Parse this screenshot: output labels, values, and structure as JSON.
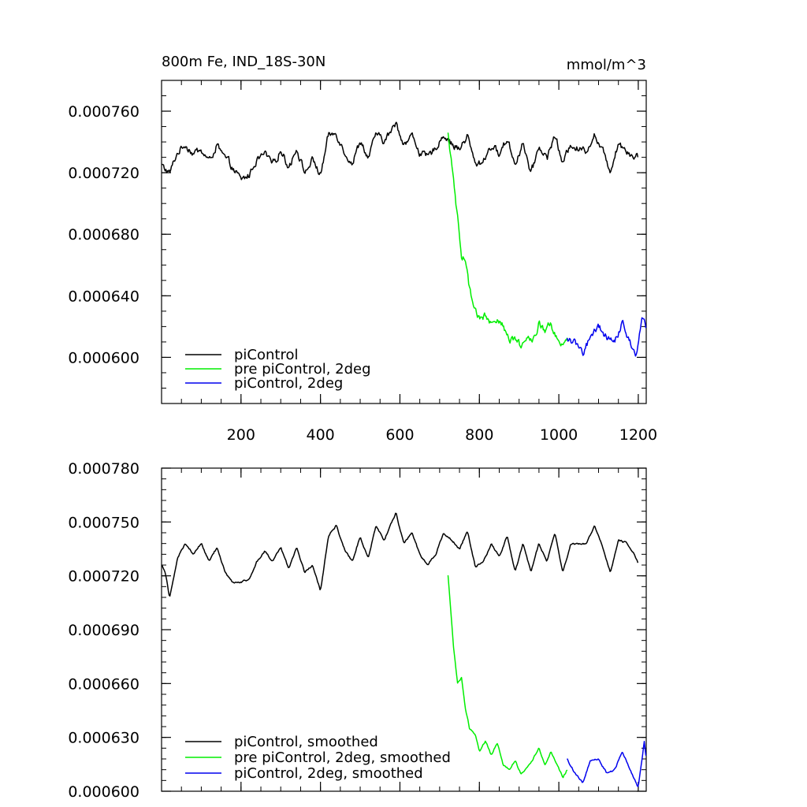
{
  "chart_data": [
    {
      "type": "line",
      "title": "800m Fe, IND_18S-30N",
      "units": "mmol/m^3",
      "xlim": [
        0,
        1220
      ],
      "ylim": [
        0.00057,
        0.00078
      ],
      "x_ticks": [
        200,
        400,
        600,
        800,
        1000,
        1200
      ],
      "x_tick_labels": [
        "200",
        "400",
        "600",
        "800",
        "1000",
        "1200"
      ],
      "y_ticks": [
        0.0006,
        0.00064,
        0.00068,
        0.00072,
        0.00076
      ],
      "y_tick_labels": [
        "0.000600",
        "0.000640",
        "0.000680",
        "0.000720",
        "0.000760"
      ],
      "y_minor_step": 1e-05,
      "x_minor_step": 50,
      "noise": 3.5e-06,
      "legend_position": "bottom-left",
      "series": [
        {
          "name": "piControl",
          "color": "#000000",
          "points": [
            [
              1,
              0.000725
            ],
            [
              20,
              0.00072
            ],
            [
              40,
              0.000733
            ],
            [
              60,
              0.000738
            ],
            [
              80,
              0.000732
            ],
            [
              100,
              0.000735
            ],
            [
              120,
              0.000728
            ],
            [
              140,
              0.000737
            ],
            [
              160,
              0.00073
            ],
            [
              180,
              0.000722
            ],
            [
              200,
              0.000715
            ],
            [
              220,
              0.000718
            ],
            [
              240,
              0.000729
            ],
            [
              260,
              0.000733
            ],
            [
              280,
              0.000727
            ],
            [
              300,
              0.000735
            ],
            [
              320,
              0.000723
            ],
            [
              340,
              0.000737
            ],
            [
              360,
              0.00072
            ],
            [
              380,
              0.000728
            ],
            [
              400,
              0.000718
            ],
            [
              420,
              0.000743
            ],
            [
              440,
              0.000745
            ],
            [
              460,
              0.000733
            ],
            [
              480,
              0.000726
            ],
            [
              500,
              0.00074
            ],
            [
              520,
              0.000728
            ],
            [
              540,
              0.000746
            ],
            [
              560,
              0.00074
            ],
            [
              590,
              0.000752
            ],
            [
              610,
              0.000738
            ],
            [
              630,
              0.000745
            ],
            [
              650,
              0.000733
            ],
            [
              670,
              0.00073
            ],
            [
              690,
              0.000735
            ],
            [
              710,
              0.000745
            ],
            [
              730,
              0.000738
            ],
            [
              750,
              0.000735
            ],
            [
              770,
              0.000745
            ],
            [
              790,
              0.000725
            ],
            [
              810,
              0.000728
            ],
            [
              830,
              0.000738
            ],
            [
              850,
              0.000732
            ],
            [
              870,
              0.000742
            ],
            [
              890,
              0.000725
            ],
            [
              910,
              0.00074
            ],
            [
              930,
              0.00072
            ],
            [
              950,
              0.000738
            ],
            [
              970,
              0.00073
            ],
            [
              990,
              0.000745
            ],
            [
              1010,
              0.000725
            ],
            [
              1030,
              0.00074
            ],
            [
              1050,
              0.000735
            ],
            [
              1070,
              0.000735
            ],
            [
              1090,
              0.000745
            ],
            [
              1110,
              0.000735
            ],
            [
              1130,
              0.000722
            ],
            [
              1150,
              0.00074
            ],
            [
              1170,
              0.000735
            ],
            [
              1190,
              0.00073
            ],
            [
              1200,
              0.000731
            ]
          ]
        },
        {
          "name": "pre piControl, 2deg",
          "color": "#00ee00",
          "points": [
            [
              721,
              0.000745
            ],
            [
              735,
              0.000715
            ],
            [
              745,
              0.00069
            ],
            [
              755,
              0.000665
            ],
            [
              765,
              0.000662
            ],
            [
              775,
              0.000645
            ],
            [
              785,
              0.000632
            ],
            [
              800,
              0.000625
            ],
            [
              815,
              0.000628
            ],
            [
              830,
              0.000622
            ],
            [
              845,
              0.000627
            ],
            [
              860,
              0.00062
            ],
            [
              875,
              0.00061
            ],
            [
              890,
              0.000612
            ],
            [
              905,
              0.000608
            ],
            [
              920,
              0.000615
            ],
            [
              935,
              0.000612
            ],
            [
              950,
              0.000622
            ],
            [
              965,
              0.000618
            ],
            [
              980,
              0.000622
            ],
            [
              995,
              0.000612
            ],
            [
              1010,
              0.000608
            ],
            [
              1021,
              0.000612
            ]
          ]
        },
        {
          "name": "piControl, 2deg",
          "color": "#0000ee",
          "points": [
            [
              1021,
              0.000612
            ],
            [
              1040,
              0.00061
            ],
            [
              1060,
              0.000603
            ],
            [
              1080,
              0.000615
            ],
            [
              1100,
              0.000618
            ],
            [
              1120,
              0.000612
            ],
            [
              1140,
              0.00061
            ],
            [
              1160,
              0.000622
            ],
            [
              1180,
              0.00061
            ],
            [
              1195,
              0.000602
            ],
            [
              1210,
              0.000628
            ],
            [
              1220,
              0.000618
            ]
          ]
        }
      ]
    },
    {
      "type": "line",
      "xlim": [
        0,
        1220
      ],
      "ylim": [
        0.0006,
        0.00078
      ],
      "x_ticks": [
        200,
        400,
        600,
        800,
        1000,
        1200
      ],
      "x_tick_labels": [],
      "y_ticks": [
        0.0006,
        0.00063,
        0.00066,
        0.00069,
        0.00072,
        0.00075,
        0.00078
      ],
      "y_tick_labels": [
        "0.000600",
        "0.000630",
        "0.000660",
        "0.000690",
        "0.000720",
        "0.000750",
        "0.000780"
      ],
      "y_minor_step": 6e-06,
      "x_minor_step": 50,
      "noise": 8e-07,
      "legend_position": "bottom-left",
      "series": [
        {
          "name": "piControl, smoothed",
          "color": "#000000",
          "points": [
            [
              1,
              0.000726
            ],
            [
              10,
              0.000722
            ],
            [
              20,
              0.000708
            ],
            [
              30,
              0.000718
            ],
            [
              40,
              0.00073
            ],
            [
              60,
              0.000738
            ],
            [
              80,
              0.000732
            ],
            [
              100,
              0.000738
            ],
            [
              120,
              0.000728
            ],
            [
              140,
              0.000736
            ],
            [
              160,
              0.000722
            ],
            [
              180,
              0.000716
            ],
            [
              200,
              0.000716
            ],
            [
              220,
              0.000718
            ],
            [
              240,
              0.000728
            ],
            [
              260,
              0.000734
            ],
            [
              280,
              0.000728
            ],
            [
              300,
              0.000736
            ],
            [
              320,
              0.000724
            ],
            [
              340,
              0.000736
            ],
            [
              360,
              0.000722
            ],
            [
              380,
              0.000726
            ],
            [
              400,
              0.000712
            ],
            [
              420,
              0.000742
            ],
            [
              440,
              0.000748
            ],
            [
              460,
              0.000735
            ],
            [
              480,
              0.000728
            ],
            [
              500,
              0.000742
            ],
            [
              520,
              0.00073
            ],
            [
              540,
              0.000748
            ],
            [
              560,
              0.00074
            ],
            [
              590,
              0.000755
            ],
            [
              610,
              0.000738
            ],
            [
              630,
              0.000744
            ],
            [
              650,
              0.000732
            ],
            [
              670,
              0.000726
            ],
            [
              690,
              0.000732
            ],
            [
              710,
              0.000744
            ],
            [
              730,
              0.00074
            ],
            [
              750,
              0.000735
            ],
            [
              770,
              0.000745
            ],
            [
              790,
              0.000725
            ],
            [
              810,
              0.000728
            ],
            [
              830,
              0.000738
            ],
            [
              850,
              0.00073
            ],
            [
              870,
              0.000742
            ],
            [
              890,
              0.000722
            ],
            [
              910,
              0.000738
            ],
            [
              930,
              0.000722
            ],
            [
              950,
              0.000738
            ],
            [
              970,
              0.000728
            ],
            [
              990,
              0.000744
            ],
            [
              1010,
              0.000722
            ],
            [
              1030,
              0.000738
            ],
            [
              1050,
              0.000738
            ],
            [
              1070,
              0.000738
            ],
            [
              1090,
              0.000748
            ],
            [
              1110,
              0.000736
            ],
            [
              1130,
              0.000722
            ],
            [
              1150,
              0.00074
            ],
            [
              1170,
              0.000738
            ],
            [
              1190,
              0.000732
            ],
            [
              1200,
              0.000727
            ]
          ]
        },
        {
          "name": "pre piControl, 2deg, smoothed",
          "color": "#00ee00",
          "points": [
            [
              721,
              0.00072
            ],
            [
              735,
              0.00068
            ],
            [
              745,
              0.00066
            ],
            [
              755,
              0.000663
            ],
            [
              765,
              0.000645
            ],
            [
              775,
              0.000635
            ],
            [
              790,
              0.000632
            ],
            [
              800,
              0.000622
            ],
            [
              815,
              0.000628
            ],
            [
              830,
              0.00062
            ],
            [
              845,
              0.000627
            ],
            [
              860,
              0.000615
            ],
            [
              875,
              0.000612
            ],
            [
              890,
              0.000617
            ],
            [
              905,
              0.00061
            ],
            [
              920,
              0.000613
            ],
            [
              935,
              0.000618
            ],
            [
              950,
              0.000624
            ],
            [
              965,
              0.000615
            ],
            [
              980,
              0.000622
            ],
            [
              995,
              0.000615
            ],
            [
              1010,
              0.000608
            ],
            [
              1021,
              0.000612
            ]
          ]
        },
        {
          "name": "piControl, 2deg, smoothed",
          "color": "#0000ee",
          "points": [
            [
              1021,
              0.000618
            ],
            [
              1040,
              0.00061
            ],
            [
              1060,
              0.000605
            ],
            [
              1080,
              0.000617
            ],
            [
              1100,
              0.000618
            ],
            [
              1120,
              0.00061
            ],
            [
              1140,
              0.000612
            ],
            [
              1160,
              0.000622
            ],
            [
              1180,
              0.000612
            ],
            [
              1200,
              0.000602
            ],
            [
              1215,
              0.000628
            ],
            [
              1220,
              0.000618
            ]
          ]
        }
      ]
    }
  ]
}
